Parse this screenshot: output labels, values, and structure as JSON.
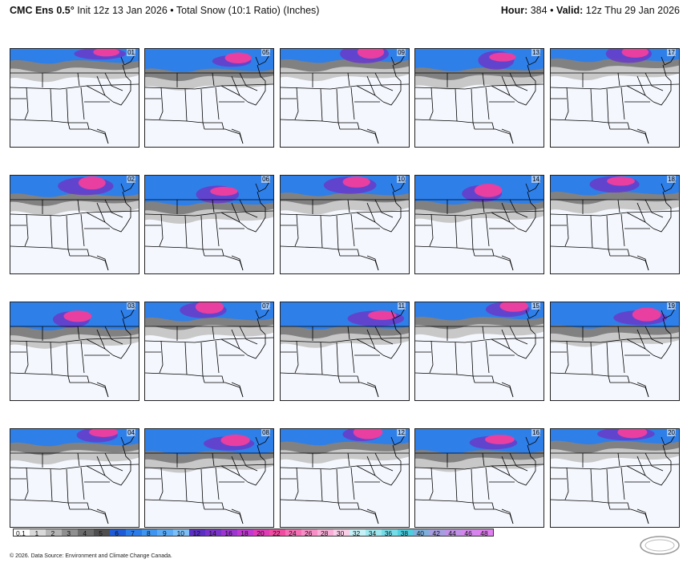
{
  "header": {
    "model": "CMC Ens 0.5°",
    "init": "Init 12z 13 Jan 2026",
    "separator": "•",
    "product": "Total Snow (10:1 Ratio) (Inches)",
    "hour_label": "Hour:",
    "hour_value": "384",
    "valid_label": "Valid:",
    "valid_value": "12z Thu 29 Jan 2026"
  },
  "members": [
    "01",
    "05",
    "09",
    "13",
    "17",
    "02",
    "06",
    "10",
    "14",
    "18",
    "03",
    "07",
    "11",
    "15",
    "19",
    "04",
    "08",
    "12",
    "16",
    "20"
  ],
  "colorbar": {
    "labels": [
      "0.1",
      "1",
      "2",
      "3",
      "4",
      "5",
      "6",
      "7",
      "8",
      "9",
      "10",
      "12",
      "14",
      "16",
      "18",
      "20",
      "22",
      "24",
      "26",
      "28",
      "30",
      "32",
      "34",
      "36",
      "38",
      "40",
      "42",
      "44",
      "46",
      "48"
    ],
    "colors": [
      "#ffffff",
      "#d9d9d9",
      "#b5b5b5",
      "#8f8f8f",
      "#6b6b6b",
      "#4f4f4f",
      "#1f5bd6",
      "#2b7be8",
      "#3f95f0",
      "#5aaaf5",
      "#7fbff7",
      "#5a2fc2",
      "#7a33c9",
      "#9c36cf",
      "#c03ad2",
      "#e03cb6",
      "#f04ca0",
      "#f56fb4",
      "#f78fc6",
      "#f9b0d8",
      "#f9cfe8",
      "#c6f2f7",
      "#9fe8f0",
      "#76dce8",
      "#4dcfe0",
      "#7fb0dc",
      "#a79ee0",
      "#c190e6",
      "#d486ec",
      "#e07ff0"
    ]
  },
  "credit": "© 2026. Data Source: Environment and Climate Change Canada.",
  "logo_text": "WeatherBELL",
  "colors": {
    "land": "#f4f7fd",
    "border": "#000000",
    "grey_light": "#c8c8c8",
    "grey_dark": "#6a6a6a",
    "blue": "#2f7fe8",
    "purple": "#6a39c9",
    "pink": "#e83fa0"
  }
}
